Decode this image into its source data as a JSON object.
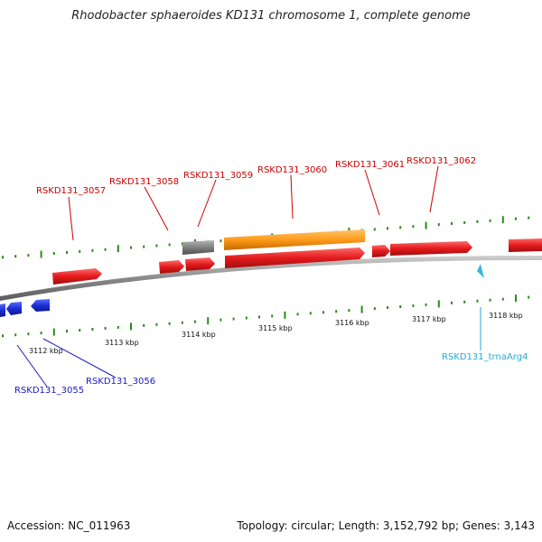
{
  "title": "Rhodobacter sphaeroides KD131 chromosome 1, complete genome",
  "accession": "Accession: NC_011963",
  "summary": "Topology: circular; Length: 3,152,792 bp; Genes: 3,143",
  "colors": {
    "gene_forward": "#e41a1c",
    "gene_reverse": "#1a2fd6",
    "pseudo": "#808080",
    "orange_feature": "#ff9a1a",
    "trna": "#39b6e0",
    "tick": "#2a8a1a",
    "backbone": "#8a8a8a",
    "label_red": "#cc0000",
    "label_blue": "#1a1ac8",
    "label_cyan": "#22a9d6"
  },
  "scale_labels": [
    "3112 kbp",
    "3113 kbp",
    "3114 kbp",
    "3115 kbp",
    "3116 kbp",
    "3117 kbp",
    "3118 kbp"
  ],
  "gene_labels_top": [
    "RSKD131_3057",
    "RSKD131_3058",
    "RSKD131_3059",
    "RSKD131_3060",
    "RSKD131_3061",
    "RSKD131_3062"
  ],
  "gene_labels_bottom": [
    "RSKD131_3055",
    "RSKD131_3056"
  ],
  "trna_label": "RSKD131_trnaArg4"
}
